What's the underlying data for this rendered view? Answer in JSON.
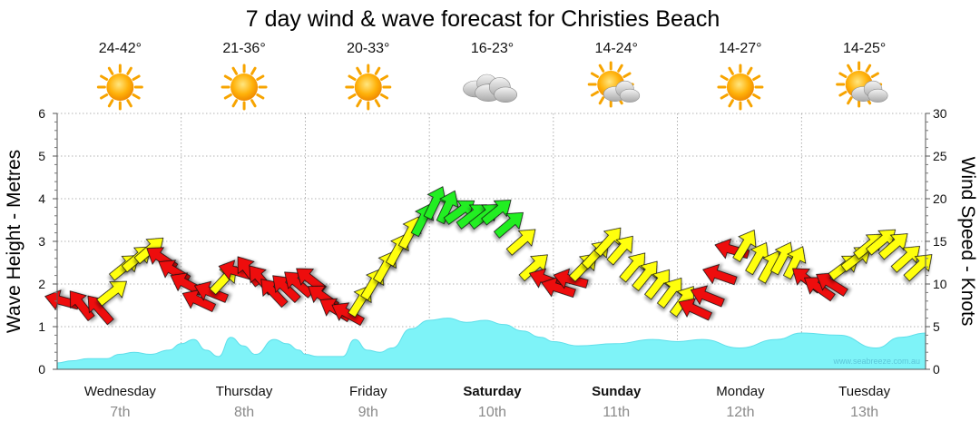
{
  "chart_data": {
    "type": "area",
    "title": "7 day wind & wave forecast for Christies Beach",
    "watermark": "www.seabreeze.com.au",
    "ylabel_left": "Wave Height - Metres",
    "ylabel_right": "Wind Speed - Knots",
    "left_ticks": [
      "0",
      "1",
      "2",
      "3",
      "4",
      "5",
      "6"
    ],
    "right_ticks": [
      "0",
      "5",
      "10",
      "15",
      "20",
      "25",
      "30"
    ],
    "ylim_left": [
      0,
      6
    ],
    "ylim_right": [
      0,
      30
    ],
    "grid": "dotted",
    "days": [
      {
        "name": "Wednesday",
        "date": "7th",
        "temp": "24-42°",
        "icon": "sun-icon",
        "weekend": false
      },
      {
        "name": "Thursday",
        "date": "8th",
        "temp": "21-36°",
        "icon": "sun-icon",
        "weekend": false
      },
      {
        "name": "Friday",
        "date": "9th",
        "temp": "20-33°",
        "icon": "sun-icon",
        "weekend": false
      },
      {
        "name": "Saturday",
        "date": "10th",
        "temp": "16-23°",
        "icon": "cloud-icon",
        "weekend": true
      },
      {
        "name": "Sunday",
        "date": "11th",
        "temp": "14-24°",
        "icon": "partly-cloudy-icon",
        "weekend": true
      },
      {
        "name": "Monday",
        "date": "12th",
        "temp": "14-27°",
        "icon": "sun-icon",
        "weekend": false
      },
      {
        "name": "Tuesday",
        "date": "13th",
        "temp": "14-25°",
        "icon": "partly-cloudy-icon",
        "weekend": false
      }
    ],
    "colors": {
      "wave": "#7ef3f8",
      "wave_line": "#5fdfea",
      "arrow_red": "#ee1111",
      "arrow_yellow": "#ffff11",
      "arrow_green": "#22ee22",
      "grid": "#9a9a9a"
    },
    "series": [
      {
        "name": "Wave Height - Metres",
        "x": [
          0,
          0.12,
          0.25,
          0.4,
          0.5,
          0.62,
          0.75,
          0.9,
          1.0,
          1.1,
          1.2,
          1.3,
          1.4,
          1.5,
          1.6,
          1.75,
          1.85,
          1.95,
          2.0,
          2.1,
          2.2,
          2.3,
          2.4,
          2.5,
          2.6,
          2.7,
          2.85,
          3.0,
          3.15,
          3.3,
          3.45,
          3.6,
          3.75,
          3.9,
          4.0,
          4.2,
          4.5,
          4.8,
          5.0,
          5.2,
          5.5,
          5.8,
          6.0,
          6.3,
          6.6,
          6.8,
          7.0
        ],
        "values": [
          0.15,
          0.2,
          0.25,
          0.25,
          0.35,
          0.4,
          0.35,
          0.45,
          0.6,
          0.7,
          0.45,
          0.3,
          0.75,
          0.55,
          0.35,
          0.7,
          0.6,
          0.45,
          0.35,
          0.3,
          0.3,
          0.3,
          0.7,
          0.45,
          0.4,
          0.5,
          0.95,
          1.15,
          1.2,
          1.1,
          1.15,
          1.05,
          0.9,
          0.75,
          0.65,
          0.55,
          0.6,
          0.7,
          0.65,
          0.7,
          0.5,
          0.7,
          0.85,
          0.8,
          0.5,
          0.75,
          0.85
        ]
      },
      {
        "name": "Wind Speed - Knots",
        "x": [
          0,
          0.15,
          0.3,
          0.4,
          0.5,
          0.6,
          0.7,
          0.8,
          0.9,
          1.0,
          1.1,
          1.2,
          1.3,
          1.4,
          1.5,
          1.6,
          1.7,
          1.8,
          1.9,
          2.0,
          2.1,
          2.2,
          2.3,
          2.4,
          2.5,
          2.6,
          2.7,
          2.8,
          2.9,
          3.0,
          3.1,
          3.2,
          3.3,
          3.4,
          3.5,
          3.6,
          3.7,
          3.8,
          3.9,
          4.0,
          4.1,
          4.2,
          4.3,
          4.4,
          4.5,
          4.6,
          4.7,
          4.8,
          4.9,
          5.0,
          5.1,
          5.2,
          5.3,
          5.4,
          5.5,
          5.6,
          5.7,
          5.8,
          5.9,
          6.0,
          6.1,
          6.2,
          6.3,
          6.4,
          6.5,
          6.6,
          6.7,
          6.8,
          6.9
        ],
        "values": [
          8,
          7.5,
          7,
          9,
          12,
          13,
          14,
          13,
          11.5,
          10,
          8,
          9,
          10.5,
          11.5,
          11.5,
          10.5,
          9,
          9.5,
          10,
          10.5,
          8.5,
          7,
          6.5,
          8,
          10,
          12,
          14,
          16,
          17.5,
          19.5,
          19,
          18.5,
          18,
          18,
          18.5,
          17,
          15,
          12,
          10.5,
          9.5,
          10.5,
          12,
          13.5,
          15,
          14,
          12,
          11,
          10,
          9,
          8,
          7,
          8.5,
          11,
          14,
          14.5,
          13,
          12,
          13,
          12.5,
          10.5,
          9.5,
          10,
          12,
          13,
          14.5,
          15,
          14.5,
          13,
          12
        ],
        "arrow_colors": [
          "red",
          "red",
          "red",
          "yellow",
          "yellow",
          "yellow",
          "yellow",
          "red",
          "red",
          "red",
          "red",
          "red",
          "yellow",
          "red",
          "red",
          "red",
          "red",
          "red",
          "red",
          "red",
          "red",
          "red",
          "red",
          "yellow",
          "yellow",
          "yellow",
          "yellow",
          "yellow",
          "green",
          "green",
          "green",
          "green",
          "green",
          "green",
          "green",
          "green",
          "yellow",
          "yellow",
          "red",
          "red",
          "red",
          "yellow",
          "yellow",
          "yellow",
          "yellow",
          "yellow",
          "yellow",
          "yellow",
          "yellow",
          "yellow",
          "red",
          "red",
          "red",
          "red",
          "yellow",
          "yellow",
          "yellow",
          "yellow",
          "yellow",
          "red",
          "red",
          "red",
          "yellow",
          "yellow",
          "yellow",
          "yellow",
          "yellow",
          "yellow",
          "yellow"
        ]
      }
    ]
  }
}
